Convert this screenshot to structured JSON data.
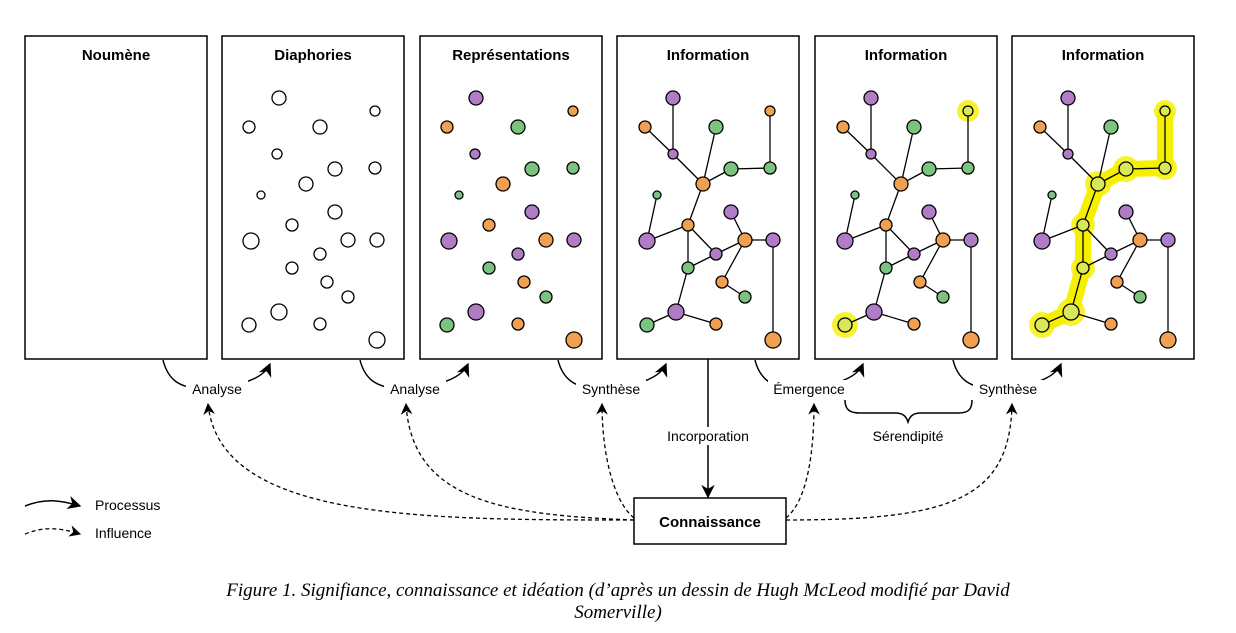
{
  "panels": [
    {
      "title": "Noumène"
    },
    {
      "title": "Diaphories"
    },
    {
      "title": "Représentations"
    },
    {
      "title": "Information"
    },
    {
      "title": "Information"
    },
    {
      "title": "Information"
    }
  ],
  "process_labels": {
    "analyse_1": "Analyse",
    "analyse_2": "Analyse",
    "synthese_1": "Synthèse",
    "emergence": "Émergence",
    "synthese_2": "Synthèse",
    "serendipite": "Sérendipité",
    "incorporation": "Incorporation"
  },
  "knowledge_box": {
    "label": "Connaissance"
  },
  "legend": {
    "process": "Processus",
    "influence": "Influence"
  },
  "colors": {
    "purple": "#b07cc6",
    "orange": "#f0a050",
    "green": "#7bc47f",
    "highlight": "#f5f000",
    "highlight_node": "#d8e85a"
  },
  "caption": {
    "line1": "Figure 1. Signifiance, connaissance et idéation (d’après un dessin de Hugh McLeod modifié par David",
    "line2": "Somerville)"
  }
}
